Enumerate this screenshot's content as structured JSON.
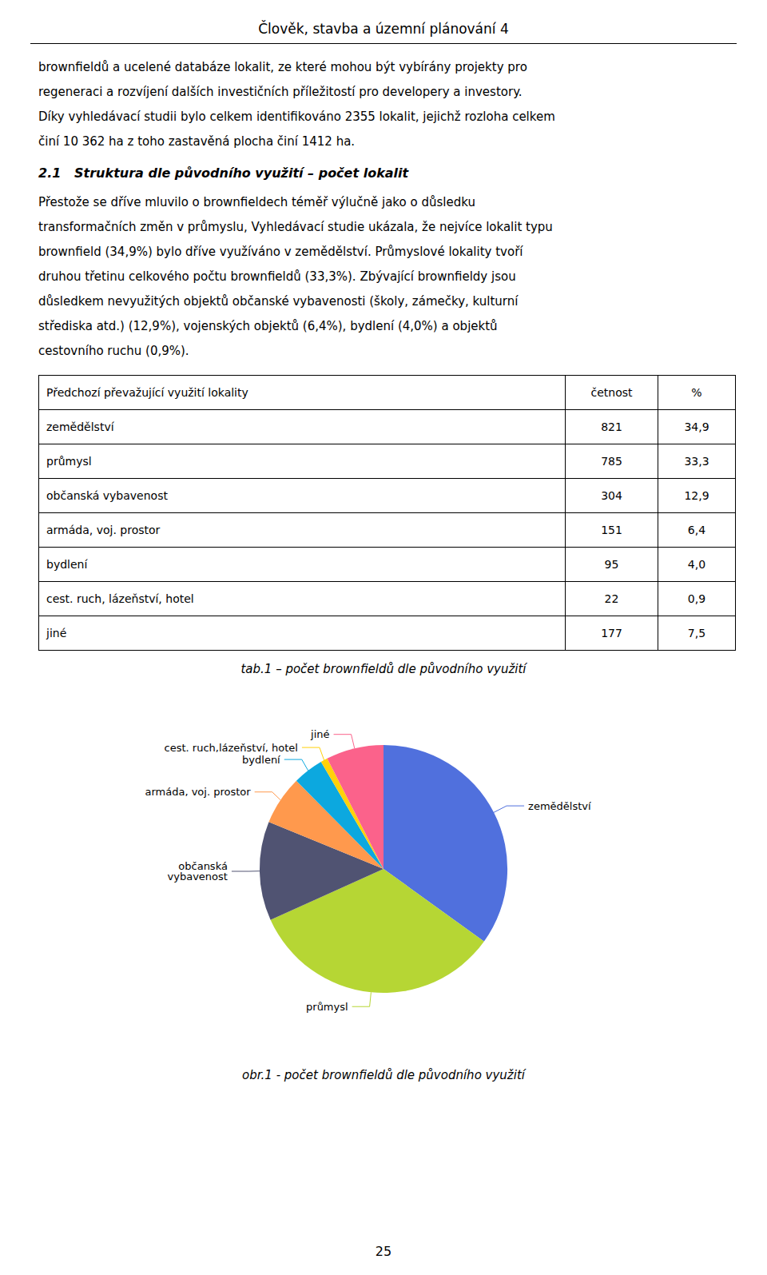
{
  "chart_data": [
    {
      "type": "table",
      "title": "Člověk, stavba a územní plánování 4",
      "annotations": {
        "paragraph_1": [
          "brownfieldů a ucelené databáze lokalit, ze které mohou být vybírány projekty pro",
          "regeneraci a rozvíjení dalších investičních příležitostí pro developery a investory.",
          "Díky vyhledávací studii bylo celkem identifikováno 2355 lokalit, jejichž rozloha celkem",
          "činí 10 362 ha z toho zastavěná plocha činí 1412 ha."
        ],
        "section_title": "2.1   Struktura dle původního využití – počet lokalit",
        "paragraph_2": [
          "Přestože se dříve mluvilo o brownfieldech téměř výlučně jako o důsledku",
          "transformačních změn v průmyslu, Vyhledávací studie ukázala, že nejvíce lokalit typu",
          "brownfield (34,9%) bylo dříve využíváno v zemědělství. Průmyslové lokality tvoří",
          "druhou třetinu celkového počtu brownfieldů (33,3%). Zbývající brownfieldy jsou",
          "důsledkem nevyužitých objektů občanské vybavenosti (školy, zámečky, kulturní",
          "střediska atd.) (12,9%), vojenských objektů (6,4%), bydlení (4,0%) a objektů",
          "cestovního ruchu (0,9%)."
        ],
        "caption": "tab.1 – počet brownfieldů dle původního využití"
      },
      "header": [
        "Předchozí převažující využití lokality",
        "četnost",
        "%"
      ],
      "categories": [
        "zemědělství",
        "průmysl",
        "občanská vybavenost",
        "armáda, voj. prostor",
        "bydlení",
        "cest. ruch, lázeňství, hotel",
        "jiné"
      ],
      "series": [
        {
          "name": "četnost",
          "values": [
            821,
            785,
            304,
            151,
            95,
            22,
            177
          ]
        },
        {
          "name": "%",
          "values": [
            34.9,
            33.3,
            12.9,
            6.4,
            4.0,
            0.9,
            7.5
          ],
          "value_labels": [
            "34,9",
            "33,3",
            "12,9",
            "6,4",
            "4,0",
            "0,9",
            "7,5"
          ]
        }
      ]
    },
    {
      "type": "pie",
      "categories": [
        "zemědělství",
        "průmysl",
        "občanská\nvybavenost",
        "armáda, voj. prostor",
        "bydlení",
        "cest. ruch,lázeňství, hotel",
        "jiné"
      ],
      "values": [
        34.9,
        33.3,
        12.9,
        6.4,
        4.0,
        0.9,
        7.5
      ],
      "annotations": {
        "caption": "obr.1 - počet brownfieldů dle původního využití",
        "page_number": "25"
      }
    }
  ]
}
